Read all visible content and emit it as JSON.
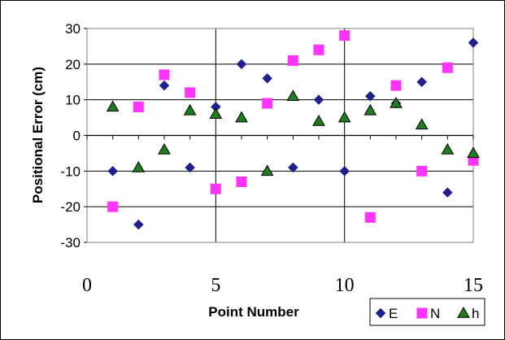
{
  "chart_data": {
    "type": "scatter",
    "xlabel": "Point Number",
    "ylabel": "Positional Error (cm)",
    "xlim": [
      0,
      15
    ],
    "ylim": [
      -30,
      30
    ],
    "x_ticks": [
      0,
      5,
      10,
      15
    ],
    "y_ticks": [
      30,
      20,
      10,
      0,
      -10,
      -20,
      -30
    ],
    "grid": true,
    "legend_position": "bottom-right",
    "series": [
      {
        "name": "E",
        "marker": "diamond",
        "color": "#1f1f8f",
        "x": [
          1,
          2,
          3,
          4,
          5,
          6,
          7,
          8,
          9,
          10,
          11,
          12,
          13,
          14,
          15
        ],
        "y": [
          -10,
          -25,
          14,
          -9,
          8,
          20,
          16,
          -9,
          10,
          -10,
          11,
          9,
          15,
          -16,
          26
        ]
      },
      {
        "name": "N",
        "marker": "square",
        "color": "#ff33ff",
        "x": [
          1,
          2,
          3,
          4,
          5,
          6,
          7,
          8,
          9,
          10,
          11,
          12,
          13,
          14,
          15
        ],
        "y": [
          -20,
          8,
          17,
          12,
          -15,
          -13,
          9,
          21,
          24,
          28,
          -23,
          14,
          -10,
          19,
          -7
        ]
      },
      {
        "name": "h",
        "marker": "triangle",
        "color": "#1e7d1e",
        "x": [
          1,
          2,
          3,
          4,
          5,
          6,
          7,
          8,
          9,
          10,
          11,
          12,
          13,
          14,
          15
        ],
        "y": [
          8,
          -9,
          -4,
          7,
          6,
          5,
          -10,
          11,
          4,
          5,
          7,
          9,
          3,
          -4,
          -5
        ]
      }
    ]
  }
}
